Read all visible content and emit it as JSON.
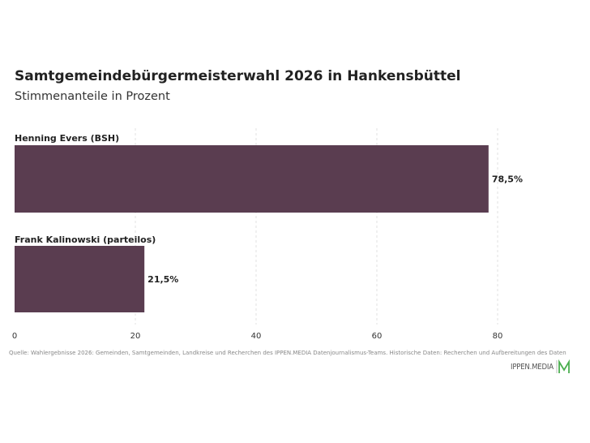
{
  "title": "Samtgemeindebürgermeisterwahl 2026 in Hankensbüttel",
  "subtitle": "Stimmenanteile in Prozent",
  "source": "Quelle: Wahlergebnisse 2026: Gemeinden, Samtgemeinden, Landkreise und Recherchen des IPPEN.MEDIA Datenjournalismus-Teams. Historische Daten: Recherchen und Aufbereitungen des Daten",
  "logo_text": "IPPEN.MEDIA",
  "colors": {
    "bar": "#5a3d50",
    "grid": "#e2e2e2",
    "logo_accent": "#4caf50"
  },
  "chart_data": {
    "type": "bar",
    "orientation": "horizontal",
    "categories": [
      "Henning Evers (BSH)",
      "Frank Kalinowski (parteilos)"
    ],
    "values": [
      78.5,
      21.5
    ],
    "value_labels": [
      "78,5%",
      "21,5%"
    ],
    "xlim": [
      0,
      80
    ],
    "xticks": [
      0,
      20,
      40,
      60,
      80
    ],
    "grid": true,
    "legend": "none"
  }
}
